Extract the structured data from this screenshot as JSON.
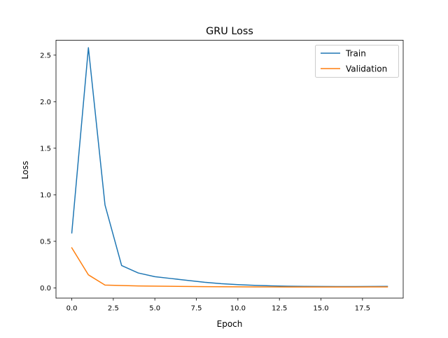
{
  "chart_data": {
    "type": "line",
    "title": "GRU Loss",
    "xlabel": "Epoch",
    "ylabel": "Loss",
    "xlim": [
      -0.95,
      19.95
    ],
    "ylim": [
      -0.11,
      2.66
    ],
    "x_ticks": [
      0.0,
      2.5,
      5.0,
      7.5,
      10.0,
      12.5,
      15.0,
      17.5
    ],
    "x_tick_labels": [
      "0.0",
      "2.5",
      "5.0",
      "7.5",
      "10.0",
      "12.5",
      "15.0",
      "17.5"
    ],
    "y_ticks": [
      0.0,
      0.5,
      1.0,
      1.5,
      2.0,
      2.5
    ],
    "y_tick_labels": [
      "0.0",
      "0.5",
      "1.0",
      "1.5",
      "2.0",
      "2.5"
    ],
    "grid": false,
    "legend_position": "top-right",
    "x": [
      0,
      1,
      2,
      3,
      4,
      5,
      6,
      7,
      8,
      9,
      10,
      11,
      12,
      13,
      14,
      15,
      16,
      17,
      18,
      19
    ],
    "series": [
      {
        "name": "Train",
        "color": "#1f77b4",
        "values": [
          0.59,
          2.58,
          0.89,
          0.24,
          0.16,
          0.12,
          0.1,
          0.08,
          0.06,
          0.045,
          0.035,
          0.027,
          0.022,
          0.018,
          0.016,
          0.015,
          0.014,
          0.014,
          0.015,
          0.016
        ]
      },
      {
        "name": "Validation",
        "color": "#ff7f0e",
        "values": [
          0.43,
          0.14,
          0.03,
          0.025,
          0.021,
          0.019,
          0.017,
          0.015,
          0.013,
          0.012,
          0.011,
          0.01,
          0.01,
          0.009,
          0.009,
          0.009,
          0.009,
          0.009,
          0.01,
          0.01
        ]
      }
    ]
  }
}
